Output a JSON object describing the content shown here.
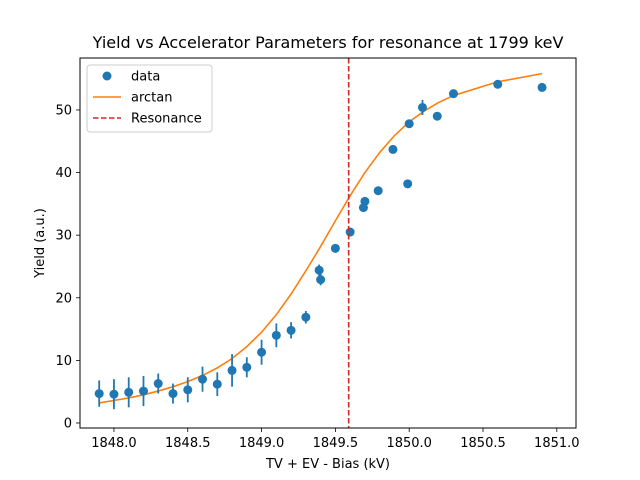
{
  "chart_data": {
    "type": "scatter",
    "title": "Yield vs Accelerator Parameters for resonance at 1799 keV",
    "xlabel": "TV + EV - Bias (kV)",
    "ylabel": "Yield (a.u.)",
    "xlim": [
      1847.77,
      1851.13
    ],
    "ylim": [
      -0.8,
      58.3
    ],
    "xticks": [
      1848.0,
      1848.5,
      1849.0,
      1849.5,
      1850.0,
      1850.5,
      1851.0
    ],
    "xtick_labels": [
      "1848.0",
      "1848.5",
      "1849.0",
      "1849.5",
      "1850.0",
      "1850.5",
      "1851.0"
    ],
    "yticks": [
      0,
      10,
      20,
      30,
      40,
      50
    ],
    "ytick_labels": [
      "0",
      "10",
      "20",
      "30",
      "40",
      "50"
    ],
    "grid": false,
    "legend": {
      "position": "top-left",
      "entries": [
        "data",
        "arctan",
        "Resonance"
      ]
    },
    "colors": {
      "data": "#1f77b4",
      "arctan": "#ff7f0e",
      "resonance": "#d62728"
    },
    "series": [
      {
        "name": "data",
        "type": "scatter",
        "points": [
          {
            "x": 1847.9,
            "y": 4.7,
            "err": 2.1
          },
          {
            "x": 1848.0,
            "y": 4.6,
            "err": 2.4
          },
          {
            "x": 1848.1,
            "y": 4.9,
            "err": 2.4
          },
          {
            "x": 1848.2,
            "y": 5.1,
            "err": 2.4
          },
          {
            "x": 1848.3,
            "y": 6.3,
            "err": 1.6
          },
          {
            "x": 1848.4,
            "y": 4.7,
            "err": 1.6
          },
          {
            "x": 1848.5,
            "y": 5.3,
            "err": 2.0
          },
          {
            "x": 1848.6,
            "y": 7.0,
            "err": 2.0
          },
          {
            "x": 1848.7,
            "y": 6.2,
            "err": 1.9
          },
          {
            "x": 1848.8,
            "y": 8.4,
            "err": 2.6
          },
          {
            "x": 1848.9,
            "y": 8.9,
            "err": 1.6
          },
          {
            "x": 1849.0,
            "y": 11.3,
            "err": 2.0
          },
          {
            "x": 1849.1,
            "y": 14.0,
            "err": 1.9
          },
          {
            "x": 1849.2,
            "y": 14.8,
            "err": 1.3
          },
          {
            "x": 1849.3,
            "y": 16.9,
            "err": 1.0
          },
          {
            "x": 1849.39,
            "y": 24.4,
            "err": 0.9
          },
          {
            "x": 1849.4,
            "y": 22.9,
            "err": 0.9
          },
          {
            "x": 1849.5,
            "y": 27.9,
            "err": 0.7
          },
          {
            "x": 1849.6,
            "y": 30.5,
            "err": 0.6
          },
          {
            "x": 1849.69,
            "y": 34.4,
            "err": 0.6
          },
          {
            "x": 1849.7,
            "y": 35.4,
            "err": 0.6
          },
          {
            "x": 1849.79,
            "y": 37.1,
            "err": 0.5
          },
          {
            "x": 1849.89,
            "y": 43.7,
            "err": 0.5
          },
          {
            "x": 1849.99,
            "y": 38.2,
            "err": 0.5
          },
          {
            "x": 1850.0,
            "y": 47.8,
            "err": 0.5
          },
          {
            "x": 1850.09,
            "y": 50.4,
            "err": 1.2
          },
          {
            "x": 1850.19,
            "y": 49.0,
            "err": 0.5
          },
          {
            "x": 1850.3,
            "y": 52.6,
            "err": 0.4
          },
          {
            "x": 1850.6,
            "y": 54.1,
            "err": 0.4
          },
          {
            "x": 1850.9,
            "y": 53.6,
            "err": 0.6
          }
        ]
      },
      {
        "name": "arctan",
        "type": "line",
        "x": [
          1847.9,
          1848.0,
          1848.1,
          1848.2,
          1848.3,
          1848.4,
          1848.5,
          1848.6,
          1848.7,
          1848.8,
          1848.9,
          1849.0,
          1849.1,
          1849.2,
          1849.3,
          1849.4,
          1849.5,
          1849.6,
          1849.7,
          1849.8,
          1849.9,
          1850.0,
          1850.1,
          1850.2,
          1850.3,
          1850.6,
          1850.9
        ],
        "y": [
          3.2,
          3.6,
          4.0,
          4.5,
          5.1,
          5.8,
          6.6,
          7.6,
          8.8,
          10.3,
          12.2,
          14.5,
          17.3,
          20.6,
          24.3,
          28.2,
          32.3,
          36.3,
          40.0,
          43.2,
          45.9,
          48.1,
          49.8,
          51.2,
          52.3,
          54.5,
          55.8
        ]
      },
      {
        "name": "Resonance",
        "type": "vline",
        "x": 1849.59
      }
    ]
  }
}
